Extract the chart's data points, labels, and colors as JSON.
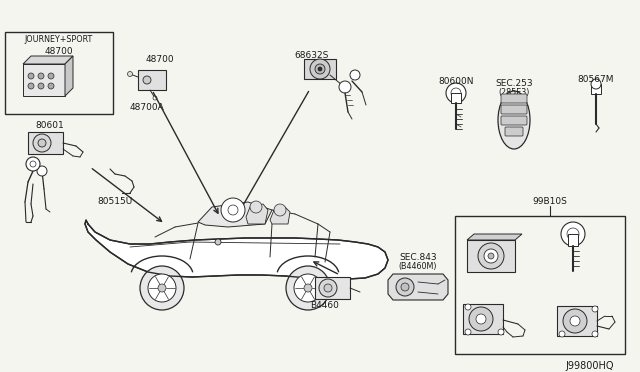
{
  "bg_color": "#f5f5f0",
  "line_color": "#2a2a2a",
  "text_color": "#1a1a1a",
  "labels": {
    "journey_sport": "JOURNEY+SPORT",
    "part_48700": "48700",
    "part_48700a": "48700A",
    "part_68632s": "68632S",
    "part_80600n": "80600N",
    "part_sec253": "SEC.253",
    "part_sec253b": "(285E3)",
    "part_80567m": "80567M",
    "part_80601": "80601",
    "part_80515u": "80515U",
    "part_b4460": "B4460",
    "part_sec843": "SEC.843",
    "part_sec843b": "(B4460M)",
    "part_99b10s": "99B10S",
    "diagram_code": "J99800HQ"
  }
}
